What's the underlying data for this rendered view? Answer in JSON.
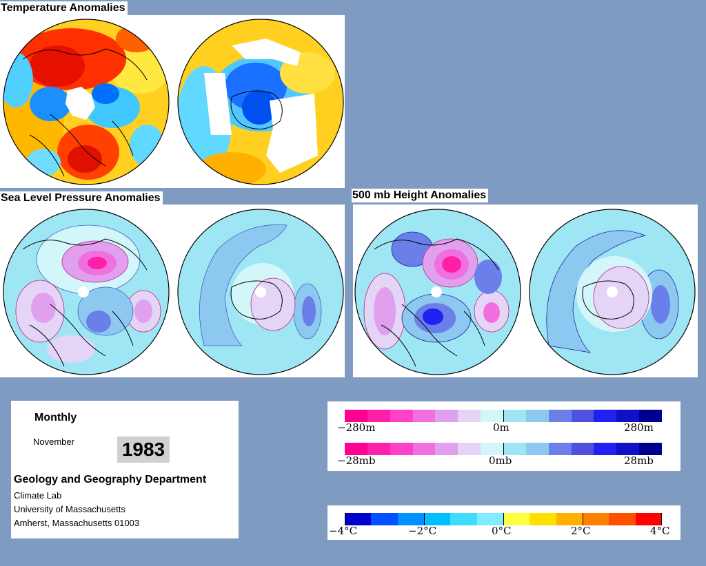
{
  "titles": {
    "temperature": "Temperature Anomalies",
    "slp": "Sea Level Pressure Anomalies",
    "height500": "500 mb Height Anomalies"
  },
  "info": {
    "frequency": "Monthly",
    "month": "November",
    "year": "1983",
    "department": "Geology and Geography Department",
    "lab": "Climate Lab",
    "university": "University of Massachusetts",
    "address": "Amherst, Massachusetts 01003"
  },
  "scales": {
    "height": {
      "labels": [
        "−280m",
        "0m",
        "280m"
      ]
    },
    "pressure": {
      "labels": [
        "−28mb",
        "0mb",
        "28mb"
      ]
    },
    "temperature": {
      "labels": [
        "−4°C",
        "−2°C",
        "0°C",
        "2°C",
        "4°C"
      ]
    }
  },
  "colors": {
    "background": "#7f9bc2",
    "pressure_scale": [
      "#ff0090",
      "#ff20a8",
      "#ff40c8",
      "#f070e0",
      "#e0a0ee",
      "#e4d4f6",
      "#d2f6fa",
      "#9ee6f4",
      "#8cc8f0",
      "#6a80e8",
      "#5050e0",
      "#2020f0",
      "#1010c8",
      "#000090"
    ],
    "temperature_scale": [
      "#0000cc",
      "#0050ff",
      "#0090ff",
      "#00bfff",
      "#40dcff",
      "#80ecff",
      "#ffff40",
      "#ffe000",
      "#ffb000",
      "#ff8000",
      "#ff5000",
      "#ff0000"
    ]
  }
}
